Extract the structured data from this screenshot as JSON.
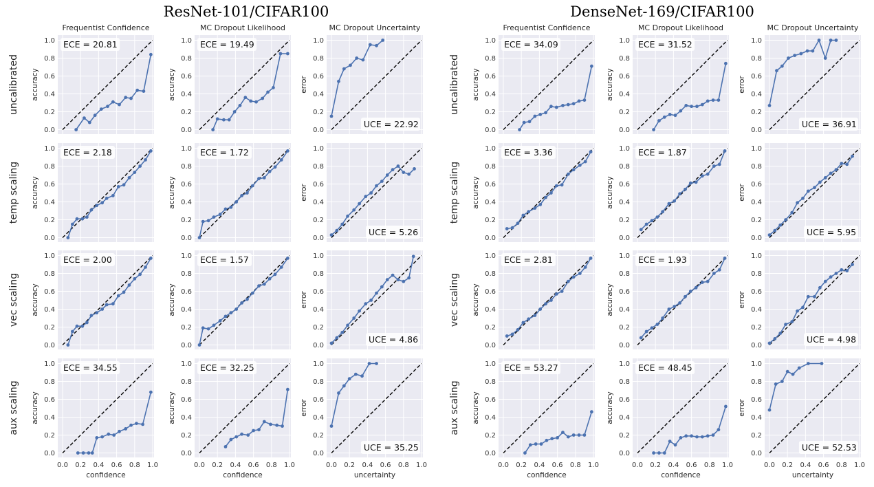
{
  "figure_titles": [
    "ResNet-101/CIFAR100",
    "DenseNet-169/CIFAR100"
  ],
  "column_titles": [
    "Frequentist Confidence",
    "MC Dropout Likelihood",
    "MC Dropout Uncertainty"
  ],
  "row_labels": [
    "uncalibrated",
    "temp scaling",
    "vec scaling",
    "aux scaling"
  ],
  "axis_labels": {
    "accuracy": "accuracy",
    "error": "error",
    "confidence": "confidence",
    "uncertainty": "uncertainty"
  },
  "tick_labels": [
    "0.0",
    "0.2",
    "0.4",
    "0.6",
    "0.8",
    "1.0"
  ],
  "colors": {
    "panel_bg": "#eaeaf2",
    "grid": "#ffffff",
    "series": "#4c72b0",
    "diagonal": "#000000"
  },
  "chart_data": [
    {
      "type": "line",
      "model": "ResNet-101/CIFAR100",
      "row": "uncalibrated",
      "column": "Frequentist Confidence",
      "stat_label": "ECE",
      "stat_value": "20.81",
      "x": [
        0.15,
        0.24,
        0.3,
        0.36,
        0.43,
        0.5,
        0.56,
        0.63,
        0.7,
        0.76,
        0.83,
        0.9,
        0.98
      ],
      "y": [
        0.0,
        0.13,
        0.08,
        0.16,
        0.23,
        0.26,
        0.31,
        0.28,
        0.36,
        0.35,
        0.44,
        0.43,
        0.84
      ],
      "xlim": [
        0,
        1
      ],
      "ylim": [
        0,
        1
      ],
      "ylabel": "accuracy",
      "xlabel": "confidence"
    },
    {
      "type": "line",
      "model": "ResNet-101/CIFAR100",
      "row": "uncalibrated",
      "column": "MC Dropout Likelihood",
      "stat_label": "ECE",
      "stat_value": "19.49",
      "x": [
        0.15,
        0.2,
        0.27,
        0.33,
        0.39,
        0.45,
        0.51,
        0.57,
        0.63,
        0.7,
        0.76,
        0.82,
        0.9,
        0.98
      ],
      "y": [
        0.0,
        0.12,
        0.11,
        0.11,
        0.2,
        0.27,
        0.36,
        0.32,
        0.31,
        0.35,
        0.42,
        0.47,
        0.85,
        0.85
      ],
      "xlim": [
        0,
        1
      ],
      "ylim": [
        0,
        1
      ],
      "ylabel": "accuracy",
      "xlabel": "confidence"
    },
    {
      "type": "line",
      "model": "ResNet-101/CIFAR100",
      "row": "uncalibrated",
      "column": "MC Dropout Uncertainty",
      "stat_label": "UCE",
      "stat_value": "22.92",
      "x": [
        0.0,
        0.08,
        0.14,
        0.21,
        0.28,
        0.35,
        0.43,
        0.5,
        0.57
      ],
      "y": [
        0.15,
        0.54,
        0.68,
        0.72,
        0.8,
        0.78,
        0.95,
        0.94,
        1.0
      ],
      "xlim": [
        0,
        1
      ],
      "ylim": [
        0,
        1
      ],
      "ylabel": "error",
      "xlabel": "uncertainty"
    },
    {
      "type": "line",
      "model": "ResNet-101/CIFAR100",
      "row": "temp scaling",
      "column": "Frequentist Confidence",
      "stat_label": "ECE",
      "stat_value": "2.18",
      "x": [
        0.06,
        0.11,
        0.16,
        0.22,
        0.27,
        0.32,
        0.38,
        0.44,
        0.49,
        0.56,
        0.62,
        0.68,
        0.74,
        0.8,
        0.86,
        0.92,
        0.98
      ],
      "y": [
        0.0,
        0.15,
        0.21,
        0.21,
        0.23,
        0.31,
        0.36,
        0.39,
        0.44,
        0.47,
        0.57,
        0.59,
        0.67,
        0.73,
        0.8,
        0.87,
        0.97
      ],
      "xlim": [
        0,
        1
      ],
      "ylim": [
        0,
        1
      ],
      "ylabel": "accuracy",
      "xlabel": "confidence"
    },
    {
      "type": "line",
      "model": "ResNet-101/CIFAR100",
      "row": "temp scaling",
      "column": "MC Dropout Likelihood",
      "stat_label": "ECE",
      "stat_value": "1.72",
      "x": [
        0.0,
        0.04,
        0.1,
        0.16,
        0.23,
        0.29,
        0.35,
        0.41,
        0.47,
        0.53,
        0.59,
        0.66,
        0.72,
        0.78,
        0.84,
        0.91,
        0.98
      ],
      "y": [
        0.0,
        0.18,
        0.19,
        0.23,
        0.26,
        0.32,
        0.34,
        0.4,
        0.47,
        0.5,
        0.58,
        0.66,
        0.67,
        0.74,
        0.79,
        0.87,
        0.97
      ],
      "xlim": [
        0,
        1
      ],
      "ylim": [
        0,
        1
      ],
      "ylabel": "accuracy",
      "xlabel": "confidence"
    },
    {
      "type": "line",
      "model": "ResNet-101/CIFAR100",
      "row": "temp scaling",
      "column": "MC Dropout Uncertainty",
      "stat_label": "UCE",
      "stat_value": "5.26",
      "x": [
        0.0,
        0.06,
        0.12,
        0.18,
        0.25,
        0.31,
        0.38,
        0.44,
        0.5,
        0.56,
        0.62,
        0.68,
        0.74,
        0.8,
        0.86,
        0.92
      ],
      "y": [
        0.03,
        0.08,
        0.15,
        0.24,
        0.31,
        0.38,
        0.46,
        0.5,
        0.58,
        0.63,
        0.7,
        0.76,
        0.8,
        0.73,
        0.71,
        0.77
      ],
      "xlim": [
        0,
        1
      ],
      "ylim": [
        0,
        1
      ],
      "ylabel": "error",
      "xlabel": "uncertainty"
    },
    {
      "type": "line",
      "model": "ResNet-101/CIFAR100",
      "row": "vec scaling",
      "column": "Frequentist Confidence",
      "stat_label": "ECE",
      "stat_value": "2.00",
      "x": [
        0.06,
        0.11,
        0.16,
        0.22,
        0.27,
        0.32,
        0.38,
        0.44,
        0.49,
        0.56,
        0.62,
        0.68,
        0.74,
        0.8,
        0.86,
        0.92,
        0.98
      ],
      "y": [
        0.0,
        0.15,
        0.21,
        0.21,
        0.25,
        0.33,
        0.36,
        0.4,
        0.45,
        0.46,
        0.55,
        0.59,
        0.67,
        0.74,
        0.79,
        0.87,
        0.97
      ],
      "xlim": [
        0,
        1
      ],
      "ylim": [
        0,
        1
      ],
      "ylabel": "accuracy",
      "xlabel": "confidence"
    },
    {
      "type": "line",
      "model": "ResNet-101/CIFAR100",
      "row": "vec scaling",
      "column": "MC Dropout Likelihood",
      "stat_label": "ECE",
      "stat_value": "1.57",
      "x": [
        0.0,
        0.04,
        0.1,
        0.16,
        0.23,
        0.29,
        0.35,
        0.41,
        0.47,
        0.53,
        0.59,
        0.66,
        0.72,
        0.78,
        0.84,
        0.91,
        0.98
      ],
      "y": [
        0.0,
        0.19,
        0.18,
        0.22,
        0.27,
        0.32,
        0.36,
        0.4,
        0.47,
        0.51,
        0.58,
        0.66,
        0.68,
        0.74,
        0.79,
        0.87,
        0.97
      ],
      "xlim": [
        0,
        1
      ],
      "ylim": [
        0,
        1
      ],
      "ylabel": "accuracy",
      "xlabel": "confidence"
    },
    {
      "type": "line",
      "model": "ResNet-101/CIFAR100",
      "row": "vec scaling",
      "column": "MC Dropout Uncertainty",
      "stat_label": "UCE",
      "stat_value": "4.86",
      "x": [
        0.0,
        0.06,
        0.12,
        0.18,
        0.25,
        0.31,
        0.38,
        0.44,
        0.5,
        0.56,
        0.62,
        0.68,
        0.74,
        0.8,
        0.86,
        0.91
      ],
      "y": [
        0.02,
        0.08,
        0.14,
        0.22,
        0.3,
        0.38,
        0.46,
        0.5,
        0.58,
        0.65,
        0.73,
        0.78,
        0.73,
        0.71,
        0.75,
        0.99
      ],
      "xlim": [
        0,
        1
      ],
      "ylim": [
        0,
        1
      ],
      "ylabel": "error",
      "xlabel": "uncertainty"
    },
    {
      "type": "line",
      "model": "ResNet-101/CIFAR100",
      "row": "aux scaling",
      "column": "Frequentist Confidence",
      "stat_label": "ECE",
      "stat_value": "34.55",
      "x": [
        0.17,
        0.23,
        0.29,
        0.33,
        0.38,
        0.44,
        0.51,
        0.57,
        0.63,
        0.7,
        0.76,
        0.82,
        0.89,
        0.98
      ],
      "y": [
        0.0,
        0.0,
        0.0,
        0.0,
        0.17,
        0.18,
        0.21,
        0.2,
        0.24,
        0.27,
        0.31,
        0.33,
        0.32,
        0.68
      ],
      "xlim": [
        0,
        1
      ],
      "ylim": [
        0,
        1
      ],
      "ylabel": "accuracy",
      "xlabel": "confidence"
    },
    {
      "type": "line",
      "model": "ResNet-101/CIFAR100",
      "row": "aux scaling",
      "column": "MC Dropout Likelihood",
      "stat_label": "ECE",
      "stat_value": "32.25",
      "x": [
        0.29,
        0.35,
        0.41,
        0.47,
        0.54,
        0.6,
        0.66,
        0.72,
        0.79,
        0.86,
        0.92,
        0.98
      ],
      "y": [
        0.07,
        0.15,
        0.18,
        0.21,
        0.2,
        0.25,
        0.26,
        0.35,
        0.32,
        0.31,
        0.3,
        0.71
      ],
      "xlim": [
        0,
        1
      ],
      "ylim": [
        0,
        1
      ],
      "ylabel": "accuracy",
      "xlabel": "confidence"
    },
    {
      "type": "line",
      "model": "ResNet-101/CIFAR100",
      "row": "aux scaling",
      "column": "MC Dropout Uncertainty",
      "stat_label": "UCE",
      "stat_value": "35.25",
      "x": [
        0.0,
        0.08,
        0.14,
        0.2,
        0.27,
        0.34,
        0.42,
        0.5
      ],
      "y": [
        0.3,
        0.67,
        0.75,
        0.83,
        0.88,
        0.86,
        1.0,
        1.0
      ],
      "xlim": [
        0,
        1
      ],
      "ylim": [
        0,
        1
      ],
      "ylabel": "error",
      "xlabel": "uncertainty"
    },
    {
      "type": "line",
      "model": "DenseNet-169/CIFAR100",
      "row": "uncalibrated",
      "column": "Frequentist Confidence",
      "stat_label": "ECE",
      "stat_value": "34.09",
      "x": [
        0.18,
        0.23,
        0.29,
        0.35,
        0.41,
        0.47,
        0.53,
        0.59,
        0.66,
        0.72,
        0.78,
        0.84,
        0.9,
        0.98
      ],
      "y": [
        0.0,
        0.08,
        0.09,
        0.15,
        0.17,
        0.19,
        0.26,
        0.25,
        0.27,
        0.28,
        0.29,
        0.32,
        0.33,
        0.71
      ],
      "xlim": [
        0,
        1
      ],
      "ylim": [
        0,
        1
      ],
      "ylabel": "accuracy",
      "xlabel": "confidence"
    },
    {
      "type": "line",
      "model": "DenseNet-169/CIFAR100",
      "row": "uncalibrated",
      "column": "MC Dropout Likelihood",
      "stat_label": "ECE",
      "stat_value": "31.52",
      "x": [
        0.18,
        0.24,
        0.3,
        0.36,
        0.42,
        0.48,
        0.54,
        0.6,
        0.66,
        0.72,
        0.78,
        0.84,
        0.9,
        0.98
      ],
      "y": [
        0.0,
        0.1,
        0.14,
        0.17,
        0.16,
        0.21,
        0.27,
        0.26,
        0.26,
        0.28,
        0.32,
        0.33,
        0.33,
        0.74
      ],
      "xlim": [
        0,
        1
      ],
      "ylim": [
        0,
        1
      ],
      "ylabel": "accuracy",
      "xlabel": "confidence"
    },
    {
      "type": "line",
      "model": "DenseNet-169/CIFAR100",
      "row": "uncalibrated",
      "column": "MC Dropout Uncertainty",
      "stat_label": "UCE",
      "stat_value": "36.91",
      "x": [
        0.0,
        0.08,
        0.14,
        0.21,
        0.28,
        0.35,
        0.42,
        0.48,
        0.55,
        0.62,
        0.68,
        0.74
      ],
      "y": [
        0.27,
        0.66,
        0.71,
        0.8,
        0.83,
        0.85,
        0.88,
        0.88,
        1.0,
        0.8,
        1.0,
        1.0
      ],
      "xlim": [
        0,
        1
      ],
      "ylim": [
        0,
        1
      ],
      "ylabel": "error",
      "xlabel": "uncertainty"
    },
    {
      "type": "line",
      "model": "DenseNet-169/CIFAR100",
      "row": "temp scaling",
      "column": "Frequentist Confidence",
      "stat_label": "ECE",
      "stat_value": "3.36",
      "x": [
        0.04,
        0.1,
        0.16,
        0.22,
        0.28,
        0.35,
        0.41,
        0.47,
        0.53,
        0.59,
        0.65,
        0.72,
        0.78,
        0.85,
        0.91,
        0.97
      ],
      "y": [
        0.1,
        0.11,
        0.16,
        0.25,
        0.29,
        0.33,
        0.37,
        0.45,
        0.5,
        0.58,
        0.59,
        0.71,
        0.76,
        0.81,
        0.85,
        0.96
      ],
      "xlim": [
        0,
        1
      ],
      "ylim": [
        0,
        1
      ],
      "ylabel": "accuracy",
      "xlabel": "confidence"
    },
    {
      "type": "line",
      "model": "DenseNet-169/CIFAR100",
      "row": "temp scaling",
      "column": "MC Dropout Likelihood",
      "stat_label": "ECE",
      "stat_value": "1.87",
      "x": [
        0.04,
        0.1,
        0.16,
        0.22,
        0.28,
        0.35,
        0.41,
        0.47,
        0.53,
        0.59,
        0.65,
        0.72,
        0.78,
        0.85,
        0.91,
        0.97
      ],
      "y": [
        0.09,
        0.15,
        0.19,
        0.23,
        0.29,
        0.38,
        0.41,
        0.49,
        0.54,
        0.61,
        0.62,
        0.69,
        0.71,
        0.8,
        0.82,
        0.97
      ],
      "xlim": [
        0,
        1
      ],
      "ylim": [
        0,
        1
      ],
      "ylabel": "accuracy",
      "xlabel": "confidence"
    },
    {
      "type": "line",
      "model": "DenseNet-169/CIFAR100",
      "row": "temp scaling",
      "column": "MC Dropout Uncertainty",
      "stat_label": "UCE",
      "stat_value": "5.95",
      "x": [
        0.0,
        0.06,
        0.12,
        0.18,
        0.25,
        0.31,
        0.37,
        0.43,
        0.5,
        0.56,
        0.62,
        0.68,
        0.74,
        0.8,
        0.86,
        0.92
      ],
      "y": [
        0.03,
        0.08,
        0.14,
        0.2,
        0.28,
        0.39,
        0.44,
        0.52,
        0.56,
        0.62,
        0.67,
        0.72,
        0.76,
        0.83,
        0.82,
        0.91
      ],
      "xlim": [
        0,
        1
      ],
      "ylim": [
        0,
        1
      ],
      "ylabel": "error",
      "xlabel": "uncertainty"
    },
    {
      "type": "line",
      "model": "DenseNet-169/CIFAR100",
      "row": "vec scaling",
      "column": "Frequentist Confidence",
      "stat_label": "ECE",
      "stat_value": "2.81",
      "x": [
        0.04,
        0.1,
        0.16,
        0.22,
        0.28,
        0.35,
        0.41,
        0.47,
        0.53,
        0.59,
        0.65,
        0.72,
        0.78,
        0.85,
        0.91,
        0.97
      ],
      "y": [
        0.1,
        0.12,
        0.17,
        0.25,
        0.29,
        0.33,
        0.4,
        0.46,
        0.5,
        0.57,
        0.6,
        0.71,
        0.76,
        0.8,
        0.87,
        0.97
      ],
      "xlim": [
        0,
        1
      ],
      "ylim": [
        0,
        1
      ],
      "ylabel": "accuracy",
      "xlabel": "confidence"
    },
    {
      "type": "line",
      "model": "DenseNet-169/CIFAR100",
      "row": "vec scaling",
      "column": "MC Dropout Likelihood",
      "stat_label": "ECE",
      "stat_value": "1.93",
      "x": [
        0.04,
        0.1,
        0.16,
        0.22,
        0.28,
        0.35,
        0.41,
        0.47,
        0.53,
        0.59,
        0.65,
        0.72,
        0.78,
        0.85,
        0.91,
        0.97
      ],
      "y": [
        0.08,
        0.15,
        0.19,
        0.23,
        0.3,
        0.4,
        0.43,
        0.47,
        0.54,
        0.6,
        0.64,
        0.7,
        0.71,
        0.8,
        0.84,
        0.97
      ],
      "xlim": [
        0,
        1
      ],
      "ylim": [
        0,
        1
      ],
      "ylabel": "accuracy",
      "xlabel": "confidence"
    },
    {
      "type": "line",
      "model": "DenseNet-169/CIFAR100",
      "row": "vec scaling",
      "column": "MC Dropout Uncertainty",
      "stat_label": "UCE",
      "stat_value": "4.98",
      "x": [
        0.0,
        0.06,
        0.12,
        0.18,
        0.25,
        0.31,
        0.37,
        0.43,
        0.5,
        0.56,
        0.62,
        0.68,
        0.74,
        0.8,
        0.86,
        0.92
      ],
      "y": [
        0.02,
        0.07,
        0.13,
        0.23,
        0.26,
        0.38,
        0.42,
        0.54,
        0.54,
        0.64,
        0.71,
        0.76,
        0.8,
        0.84,
        0.83,
        0.9
      ],
      "xlim": [
        0,
        1
      ],
      "ylim": [
        0,
        1
      ],
      "ylabel": "error",
      "xlabel": "uncertainty"
    },
    {
      "type": "line",
      "model": "DenseNet-169/CIFAR100",
      "row": "aux scaling",
      "column": "Frequentist Confidence",
      "stat_label": "ECE",
      "stat_value": "53.27",
      "x": [
        0.24,
        0.3,
        0.36,
        0.42,
        0.48,
        0.54,
        0.6,
        0.66,
        0.72,
        0.78,
        0.84,
        0.9,
        0.98
      ],
      "y": [
        0.0,
        0.09,
        0.1,
        0.1,
        0.14,
        0.16,
        0.17,
        0.23,
        0.18,
        0.2,
        0.2,
        0.2,
        0.46
      ],
      "xlim": [
        0,
        1
      ],
      "ylim": [
        0,
        1
      ],
      "ylabel": "accuracy",
      "xlabel": "confidence"
    },
    {
      "type": "line",
      "model": "DenseNet-169/CIFAR100",
      "row": "aux scaling",
      "column": "MC Dropout Likelihood",
      "stat_label": "ECE",
      "stat_value": "48.45",
      "x": [
        0.18,
        0.24,
        0.3,
        0.36,
        0.42,
        0.48,
        0.54,
        0.6,
        0.66,
        0.72,
        0.78,
        0.84,
        0.9,
        0.98
      ],
      "y": [
        0.0,
        0.0,
        0.0,
        0.13,
        0.09,
        0.17,
        0.19,
        0.19,
        0.18,
        0.18,
        0.19,
        0.2,
        0.26,
        0.52
      ],
      "xlim": [
        0,
        1
      ],
      "ylim": [
        0,
        1
      ],
      "ylabel": "accuracy",
      "xlabel": "confidence"
    },
    {
      "type": "line",
      "model": "DenseNet-169/CIFAR100",
      "row": "aux scaling",
      "column": "MC Dropout Uncertainty",
      "stat_label": "UCE",
      "stat_value": "52.53",
      "x": [
        0.0,
        0.07,
        0.14,
        0.2,
        0.26,
        0.33,
        0.43,
        0.58
      ],
      "y": [
        0.48,
        0.77,
        0.8,
        0.91,
        0.88,
        0.95,
        1.0,
        1.0
      ],
      "xlim": [
        0,
        1
      ],
      "ylim": [
        0,
        1
      ],
      "ylabel": "error",
      "xlabel": "uncertainty"
    }
  ]
}
